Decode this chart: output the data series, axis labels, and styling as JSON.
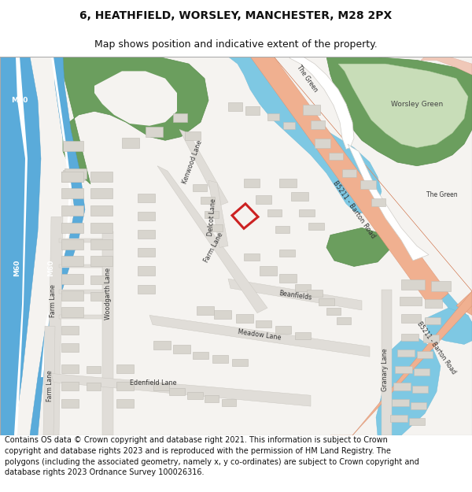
{
  "title_line1": "6, HEATHFIELD, WORSLEY, MANCHESTER, M28 2PX",
  "title_line2": "Map shows position and indicative extent of the property.",
  "footer_text": "Contains OS data © Crown copyright and database right 2021. This information is subject to Crown copyright and database rights 2023 and is reproduced with the permission of HM Land Registry. The polygons (including the associated geometry, namely x, y co-ordinates) are subject to Crown copyright and database rights 2023 Ordnance Survey 100026316.",
  "title_fontsize": 10,
  "subtitle_fontsize": 9,
  "footer_fontsize": 7.0,
  "bg_color": "#ffffff",
  "map_bg": "#f5f3f0",
  "blue_color": "#7ec8e3",
  "blue_motorway": "#5aabda",
  "green_dark": "#6b9e5e",
  "green_light": "#c8ddb8",
  "orange_road": "#f0b090",
  "gray_road": "#e0ddd8",
  "building_color": "#d8d5ce",
  "building_edge": "#c0bdb6",
  "white_road": "#ffffff",
  "red_outline": "#cc2222"
}
